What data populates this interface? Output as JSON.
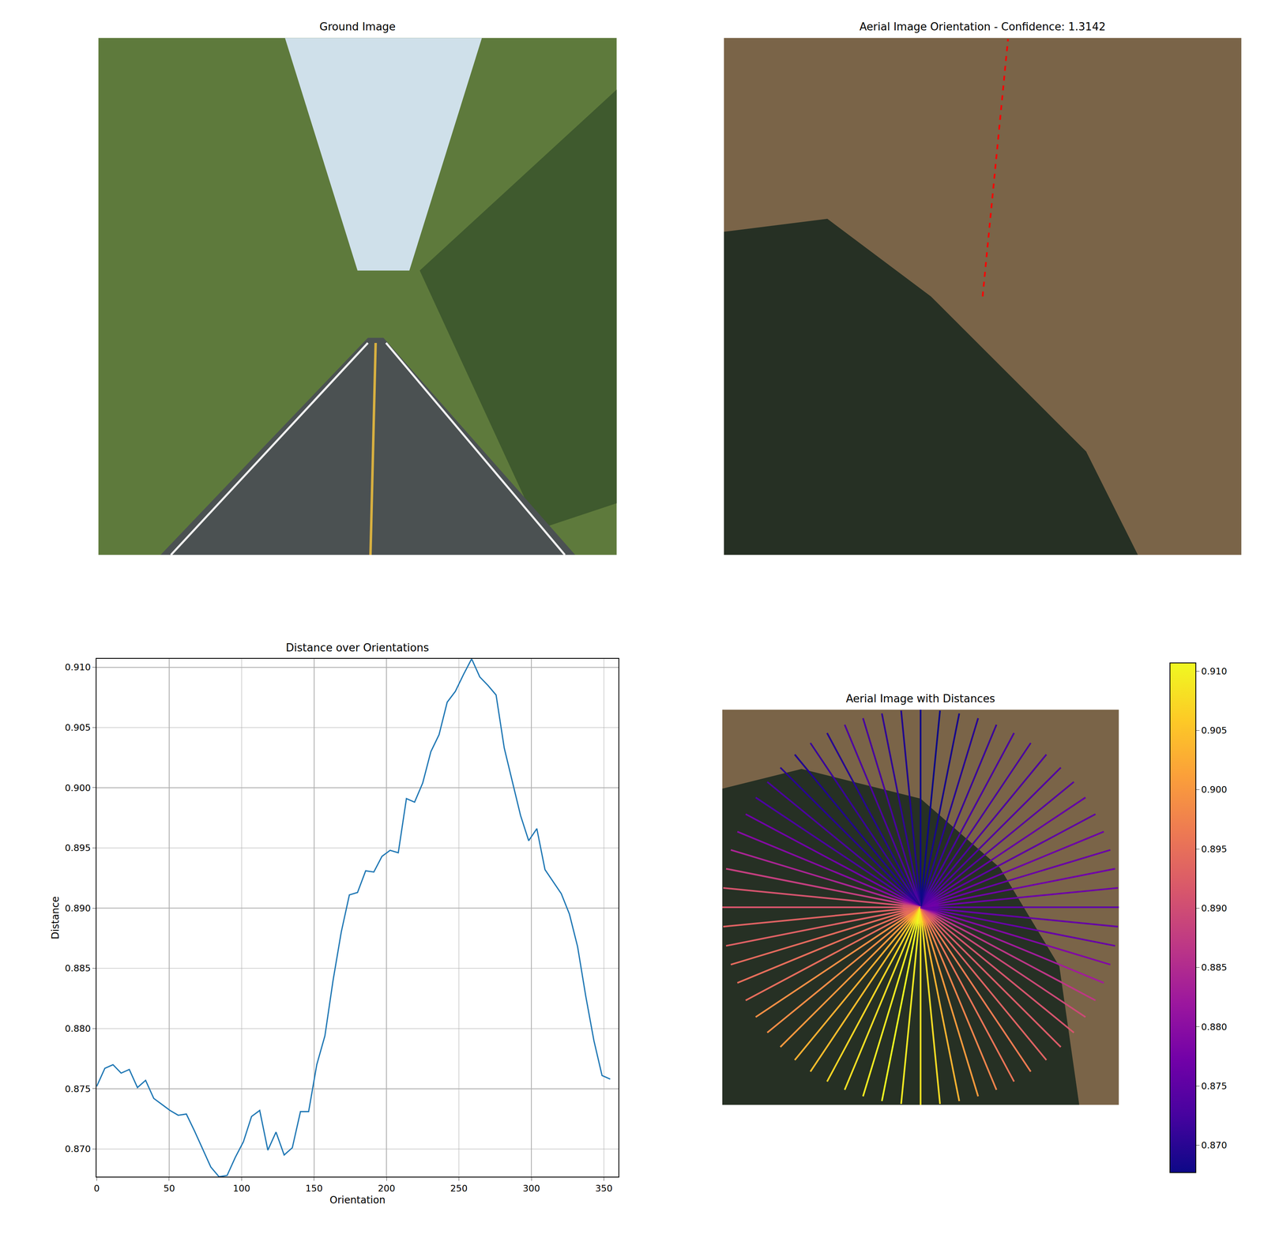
{
  "chart_data": [
    {
      "type": "image",
      "title": "Ground Image",
      "tick_labels": false
    },
    {
      "type": "image",
      "title": "Aerial Image Orientation - Confidence: 1.3142",
      "tick_labels": false,
      "orientation_line": 84.375,
      "line_style": "dashed",
      "color": "#ff0000"
    },
    {
      "type": "line",
      "title": "Distance over Orientations",
      "x_label": "Orientation",
      "y_label": "Distance",
      "x": [
        0,
        5.625,
        11.25,
        16.875,
        22.5,
        28.125,
        33.75,
        39.375,
        45,
        50.625,
        56.25,
        61.875,
        67.5,
        73.125,
        78.75,
        84.375,
        90,
        95.625,
        101.25,
        106.875,
        112.5,
        118.125,
        123.75,
        129.375,
        135,
        140.625,
        146.25,
        151.875,
        157.5,
        163.125,
        168.75,
        174.375,
        180,
        185.625,
        191.25,
        196.875,
        202.5,
        208.125,
        213.75,
        219.375,
        225,
        230.625,
        236.25,
        241.875,
        247.5,
        253.125,
        258.75,
        264.375,
        270,
        275.625,
        281.25,
        286.875,
        292.5,
        298.125,
        303.75,
        309.375,
        315,
        320.625,
        326.25,
        331.875,
        337.5,
        343.125,
        348.75,
        354.375
      ],
      "values": [
        0.8752,
        0.8767,
        0.877,
        0.8763,
        0.8766,
        0.8751,
        0.8757,
        0.8742,
        0.8737,
        0.8732,
        0.8728,
        0.8729,
        0.8715,
        0.87,
        0.8685,
        0.8677,
        0.8678,
        0.8693,
        0.8706,
        0.8727,
        0.8732,
        0.8699,
        0.8714,
        0.8695,
        0.8701,
        0.8731,
        0.8731,
        0.877,
        0.8794,
        0.884,
        0.888,
        0.8911,
        0.8913,
        0.8931,
        0.893,
        0.8943,
        0.8948,
        0.8946,
        0.8991,
        0.8988,
        0.9004,
        0.903,
        0.9044,
        0.9071,
        0.908,
        0.9094,
        0.9107,
        0.9092,
        0.9085,
        0.9077,
        0.9033,
        0.9005,
        0.8977,
        0.8956,
        0.8966,
        0.8932,
        0.8922,
        0.8912,
        0.8895,
        0.8868,
        0.8827,
        0.879,
        0.8761,
        0.8758
      ],
      "color": "#1f77b4",
      "xlim": [
        0,
        360
      ],
      "ylim": [
        0.8677,
        0.9107
      ],
      "xticks": [
        0,
        50,
        100,
        150,
        200,
        250,
        300,
        350
      ],
      "yticks": [
        {
          "value": 0.87,
          "label": "0.870"
        },
        0.875,
        {
          "value": 0.88,
          "label": "0.880"
        },
        0.885,
        {
          "value": 0.89,
          "label": "0.890"
        },
        0.895,
        {
          "value": 0.9,
          "label": "0.900"
        },
        0.905,
        {
          "value": 0.91,
          "label": "0.910"
        }
      ],
      "grid": true
    },
    {
      "type": "radial",
      "title": "Aerial Image with Distances",
      "tick_labels": false,
      "angles": [
        0,
        5.625,
        11.25,
        16.875,
        22.5,
        28.125,
        33.75,
        39.375,
        45,
        50.625,
        56.25,
        61.875,
        67.5,
        73.125,
        78.75,
        84.375,
        90,
        95.625,
        101.25,
        106.875,
        112.5,
        118.125,
        123.75,
        129.375,
        135,
        140.625,
        146.25,
        151.875,
        157.5,
        163.125,
        168.75,
        174.375,
        180,
        185.625,
        191.25,
        196.875,
        202.5,
        208.125,
        213.75,
        219.375,
        225,
        230.625,
        236.25,
        241.875,
        247.5,
        253.125,
        258.75,
        264.375,
        270,
        275.625,
        281.25,
        286.875,
        292.5,
        298.125,
        303.75,
        309.375,
        315,
        320.625,
        326.25,
        331.875,
        337.5,
        343.125,
        348.75,
        354.375
      ],
      "values": [
        0.8752,
        0.8767,
        0.877,
        0.8763,
        0.8766,
        0.8751,
        0.8757,
        0.8742,
        0.8737,
        0.8732,
        0.8728,
        0.8729,
        0.8715,
        0.87,
        0.8685,
        0.8677,
        0.8678,
        0.8693,
        0.8706,
        0.8727,
        0.8732,
        0.8699,
        0.8714,
        0.8695,
        0.8701,
        0.8731,
        0.8731,
        0.877,
        0.8794,
        0.884,
        0.888,
        0.8911,
        0.8913,
        0.8931,
        0.893,
        0.8943,
        0.8948,
        0.8946,
        0.8991,
        0.8988,
        0.9004,
        0.903,
        0.9044,
        0.9071,
        0.908,
        0.9094,
        0.9107,
        0.9092,
        0.9085,
        0.9077,
        0.9033,
        0.9005,
        0.8977,
        0.8956,
        0.8966,
        0.8932,
        0.8922,
        0.8912,
        0.8895,
        0.8868,
        0.8827,
        0.879,
        0.8761,
        0.8758
      ],
      "colorbar": {
        "range": [
          0.8677,
          0.9107
        ],
        "ticks": [
          {
            "value": 0.87,
            "label": "0.870"
          },
          0.875,
          {
            "value": 0.88,
            "label": "0.880"
          },
          0.885,
          {
            "value": 0.89,
            "label": "0.890"
          },
          0.895,
          {
            "value": 0.9,
            "label": "0.900"
          },
          0.905,
          {
            "value": 0.91,
            "label": "0.910"
          }
        ]
      }
    }
  ]
}
